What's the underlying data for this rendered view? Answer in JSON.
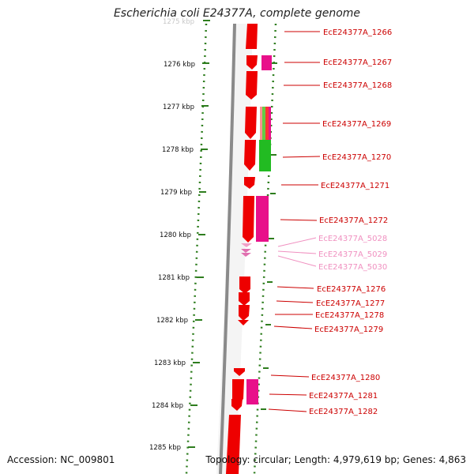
{
  "title": "Escherichia coli E24377A, complete genome",
  "footer": {
    "accession": "Accession: NC_009801",
    "summary": "Topology: circular; Length: 4,979,619 bp; Genes: 4,863"
  },
  "colors": {
    "axis_ticks": "#2e7d1e",
    "backbone": "#8a8a8a",
    "gene": "#ee0000",
    "gene_label": "#cc0000",
    "rna_label": "#f090c0",
    "magenta": "#e8108a",
    "green": "#22bb22"
  },
  "scale": {
    "unit": "kbp",
    "ticks": [
      "1275 kbp",
      "1276 kbp",
      "1277 kbp",
      "1278 kbp",
      "1279 kbp",
      "1280 kbp",
      "1281 kbp",
      "1282 kbp",
      "1283 kbp",
      "1284 kbp",
      "1285 kbp"
    ]
  },
  "genes": [
    {
      "label": "EcE24377A_1266",
      "kind": "gene"
    },
    {
      "label": "EcE24377A_1267",
      "kind": "gene"
    },
    {
      "label": "EcE24377A_1268",
      "kind": "gene"
    },
    {
      "label": "EcE24377A_1269",
      "kind": "gene"
    },
    {
      "label": "EcE24377A_1270",
      "kind": "gene"
    },
    {
      "label": "EcE24377A_1271",
      "kind": "gene"
    },
    {
      "label": "EcE24377A_1272",
      "kind": "gene"
    },
    {
      "label": "EcE24377A_5028",
      "kind": "rna"
    },
    {
      "label": "EcE24377A_5029",
      "kind": "rna"
    },
    {
      "label": "EcE24377A_5030",
      "kind": "rna"
    },
    {
      "label": "EcE24377A_1276",
      "kind": "gene"
    },
    {
      "label": "EcE24377A_1277",
      "kind": "gene"
    },
    {
      "label": "EcE24377A_1278",
      "kind": "gene"
    },
    {
      "label": "EcE24377A_1279",
      "kind": "gene"
    },
    {
      "label": "EcE24377A_1280",
      "kind": "gene"
    },
    {
      "label": "EcE24377A_1281",
      "kind": "gene"
    },
    {
      "label": "EcE24377A_1282",
      "kind": "gene"
    }
  ]
}
